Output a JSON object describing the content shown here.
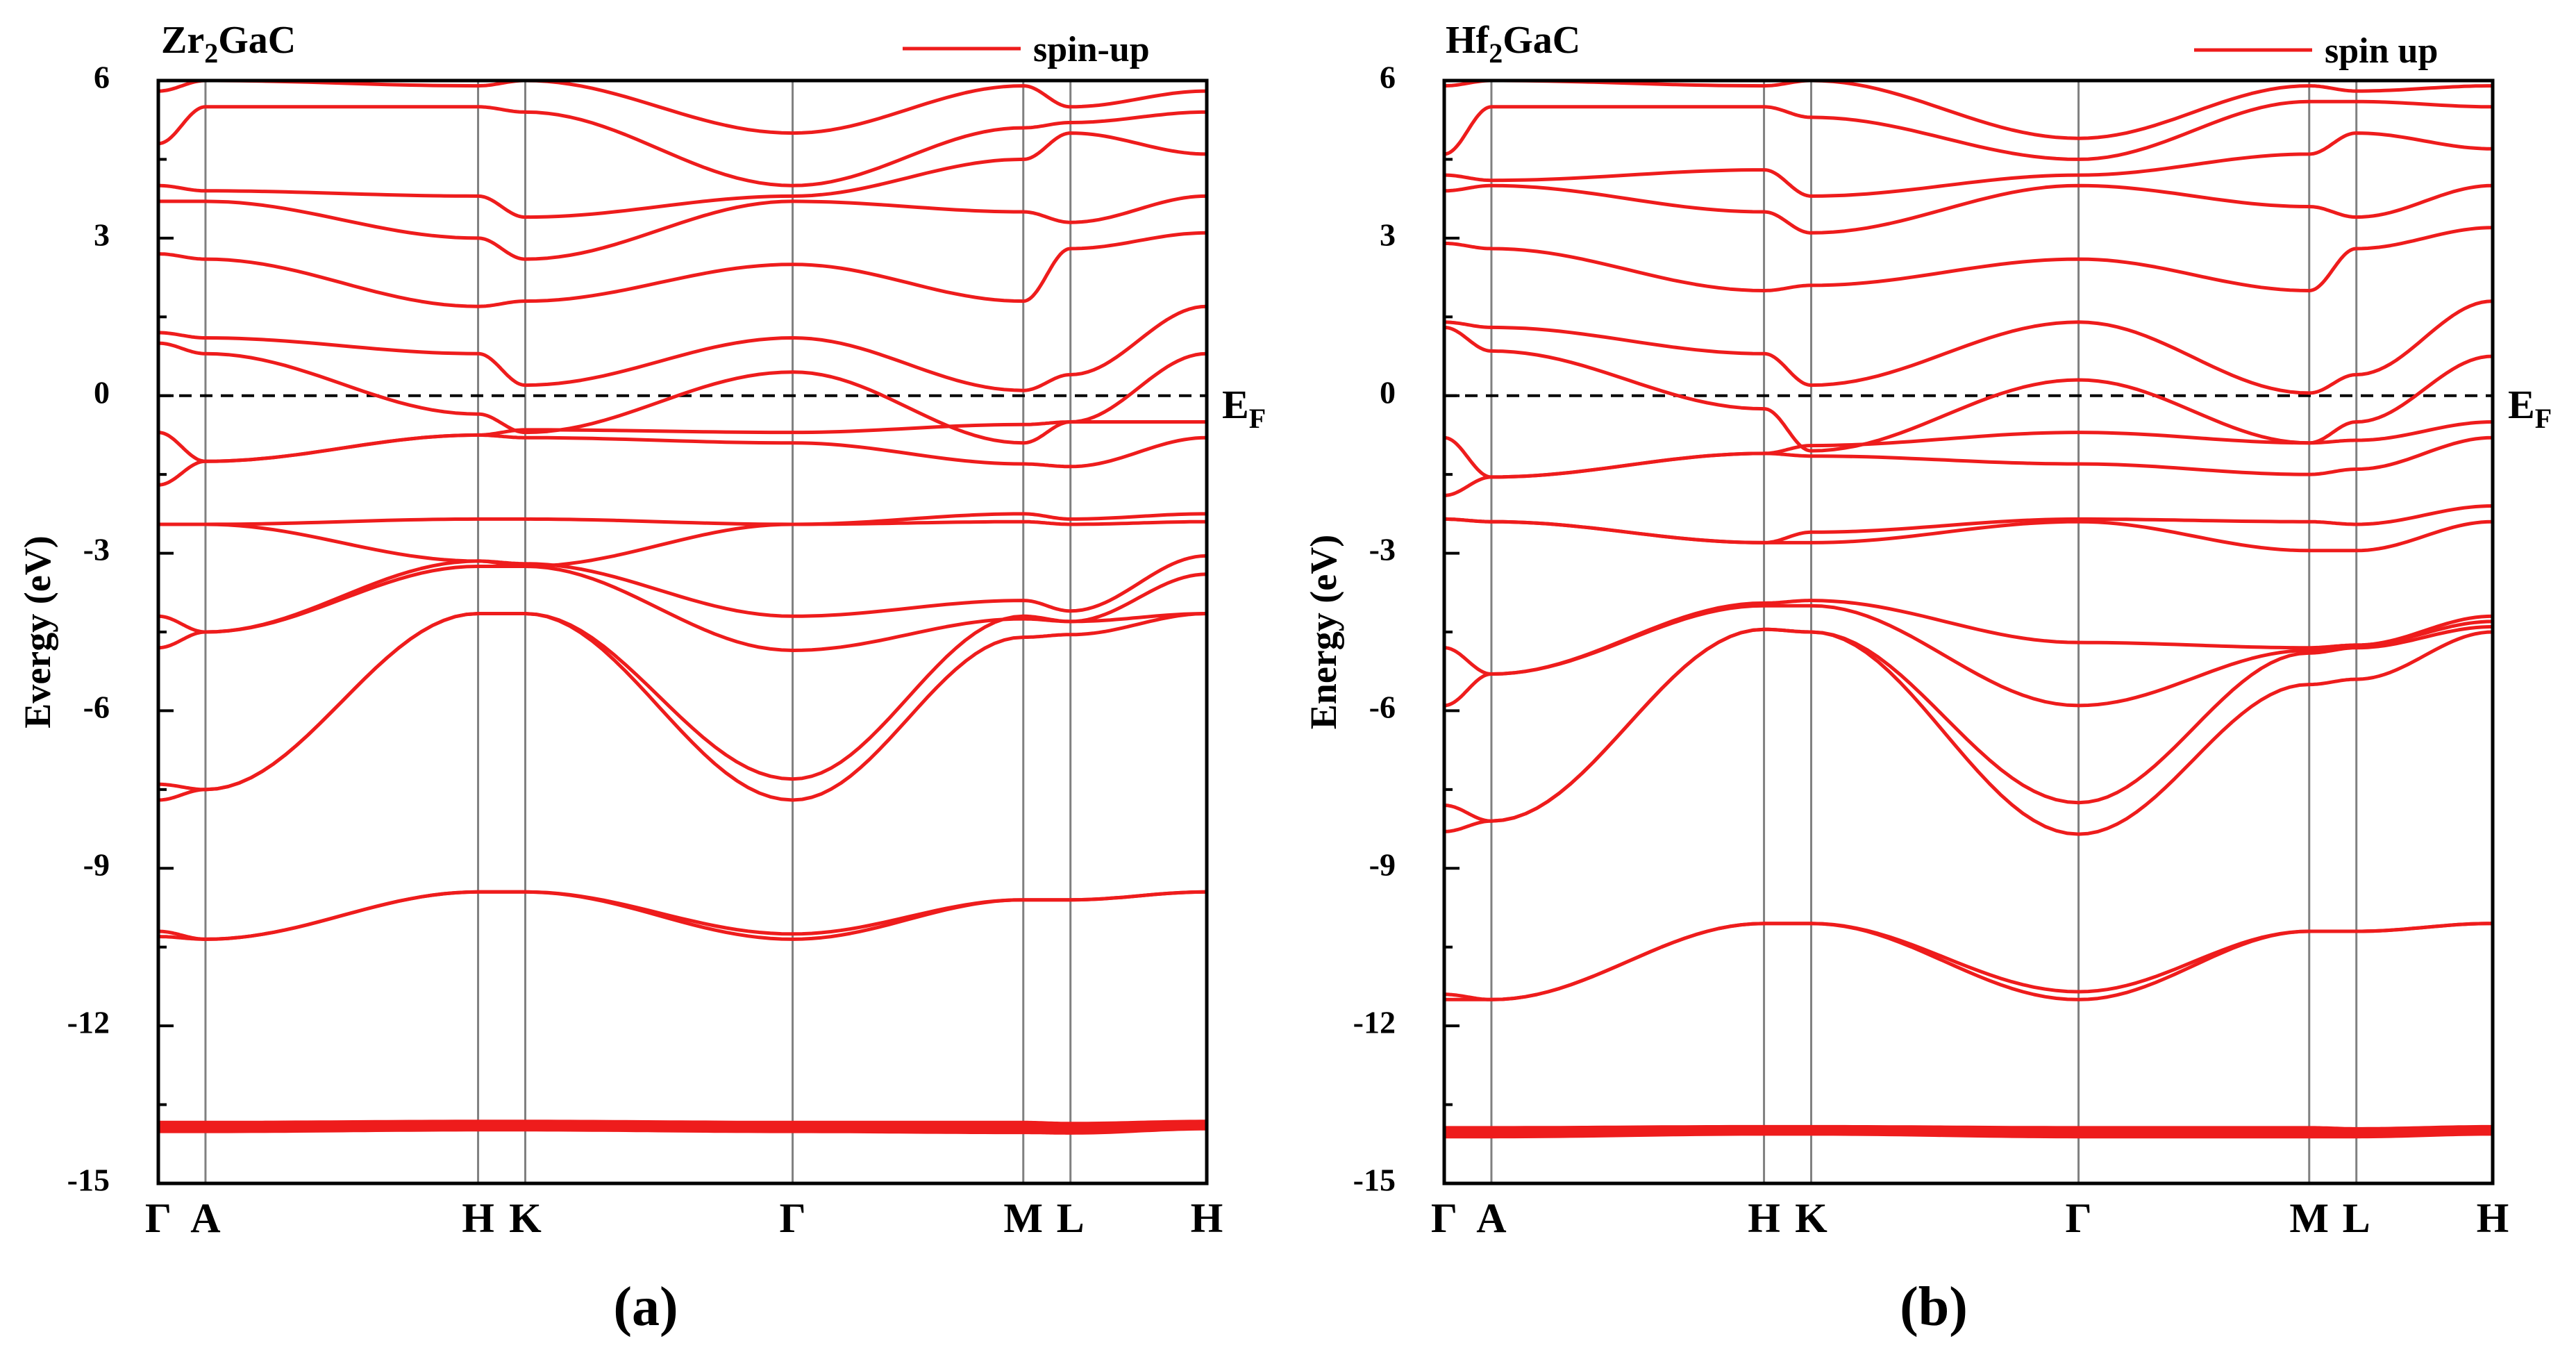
{
  "figure": {
    "band_color": "#ee1c1c",
    "kline_color": "#808080",
    "ef_line_color": "#000000"
  },
  "chart_data": [
    {
      "type": "line",
      "panel_label": "(a)",
      "material": {
        "base": "Zr",
        "sub": "2",
        "rest": "GaC"
      },
      "legend": "spin-up",
      "ylabel": "Evergy (eV)",
      "ylim": [
        -15,
        6
      ],
      "yticks": [
        6,
        3,
        0,
        -3,
        -6,
        -9,
        -12,
        -15
      ],
      "ytick_labels": [
        "6",
        "3",
        "0",
        "-3",
        "-6",
        "-9",
        "-12",
        "-15"
      ],
      "fermi_level": 0,
      "fermi_label": {
        "base": "E",
        "sub": "F"
      },
      "kpoints": [
        {
          "label": "Γ",
          "x": 0
        },
        {
          "label": "A",
          "x": 0.9
        },
        {
          "label": "H",
          "x": 6.1
        },
        {
          "label": "K",
          "x": 7.0
        },
        {
          "label": "Γ",
          "x": 12.1
        },
        {
          "label": "M",
          "x": 16.5
        },
        {
          "label": "L",
          "x": 17.4
        },
        {
          "label": "H",
          "x": 20.0
        }
      ],
      "series": [
        {
          "name": "core-1",
          "values": [
            -13.9,
            -13.9,
            -13.88,
            -13.88,
            -13.9,
            -13.9,
            -13.92,
            -13.88
          ]
        },
        {
          "name": "core-2",
          "values": [
            -13.95,
            -13.95,
            -13.92,
            -13.92,
            -13.95,
            -13.97,
            -13.98,
            -13.9
          ]
        },
        {
          "name": "band-1",
          "values": [
            -10.3,
            -10.35,
            -9.45,
            -9.45,
            -10.35,
            -9.6,
            -9.6,
            -9.45
          ]
        },
        {
          "name": "band-2",
          "values": [
            -10.2,
            -10.35,
            -9.45,
            -9.45,
            -10.25,
            -9.6,
            -9.6,
            -9.45
          ]
        },
        {
          "name": "band-3",
          "values": [
            -7.7,
            -7.5,
            -4.15,
            -4.15,
            -7.7,
            -4.6,
            -4.55,
            -4.15
          ]
        },
        {
          "name": "band-4",
          "values": [
            -7.4,
            -7.5,
            -4.15,
            -4.15,
            -7.3,
            -4.2,
            -4.3,
            -4.15
          ]
        },
        {
          "name": "band-5",
          "values": [
            -4.8,
            -4.5,
            -3.25,
            -3.25,
            -4.85,
            -4.25,
            -4.3,
            -3.4
          ]
        },
        {
          "name": "band-6",
          "values": [
            -4.2,
            -4.5,
            -3.15,
            -3.2,
            -4.2,
            -3.9,
            -4.1,
            -3.05
          ]
        },
        {
          "name": "band-7",
          "values": [
            -2.45,
            -2.45,
            -3.15,
            -3.25,
            -2.45,
            -2.4,
            -2.45,
            -2.4
          ]
        },
        {
          "name": "band-8",
          "values": [
            -2.45,
            -2.45,
            -2.35,
            -2.35,
            -2.45,
            -2.25,
            -2.35,
            -2.25
          ]
        },
        {
          "name": "band-9",
          "values": [
            -1.7,
            -1.25,
            -0.75,
            -0.8,
            -0.9,
            -1.3,
            -1.35,
            -0.8
          ]
        },
        {
          "name": "band-10",
          "values": [
            -0.7,
            -1.25,
            -0.75,
            -0.65,
            -0.7,
            -0.55,
            -0.5,
            -0.5
          ]
        },
        {
          "name": "band-11",
          "values": [
            1.0,
            0.8,
            -0.35,
            -0.7,
            0.45,
            -0.9,
            -0.5,
            0.8
          ]
        },
        {
          "name": "band-12",
          "values": [
            1.2,
            1.1,
            0.8,
            0.2,
            1.1,
            0.1,
            0.4,
            1.7
          ]
        },
        {
          "name": "band-13",
          "values": [
            2.7,
            2.6,
            1.7,
            1.8,
            2.5,
            1.8,
            2.8,
            3.1
          ]
        },
        {
          "name": "band-14",
          "values": [
            3.7,
            3.7,
            3.0,
            2.6,
            3.7,
            3.5,
            3.3,
            3.8
          ]
        },
        {
          "name": "band-15",
          "values": [
            4.0,
            3.9,
            3.8,
            3.4,
            3.8,
            4.5,
            5.0,
            4.6
          ]
        },
        {
          "name": "band-16",
          "values": [
            4.8,
            5.5,
            5.5,
            5.4,
            4.0,
            5.1,
            5.2,
            5.4
          ]
        },
        {
          "name": "band-17",
          "values": [
            5.8,
            6.0,
            5.9,
            6.0,
            5.0,
            5.9,
            5.5,
            5.8
          ]
        }
      ]
    },
    {
      "type": "line",
      "panel_label": "(b)",
      "material": {
        "base": "Hf",
        "sub": "2",
        "rest": "GaC"
      },
      "legend": "spin up",
      "ylabel": "Energy (eV)",
      "ylim": [
        -15,
        6
      ],
      "yticks": [
        6,
        3,
        0,
        -3,
        -6,
        -9,
        -12,
        -15
      ],
      "ytick_labels": [
        "6",
        "3",
        "0",
        "-3",
        "-6",
        "-9",
        "-12",
        "-15"
      ],
      "fermi_level": 0,
      "fermi_label": {
        "base": "E",
        "sub": "F"
      },
      "kpoints": [
        {
          "label": "Γ",
          "x": 0
        },
        {
          "label": "A",
          "x": 0.9
        },
        {
          "label": "H",
          "x": 6.1
        },
        {
          "label": "K",
          "x": 7.0
        },
        {
          "label": "Γ",
          "x": 12.1
        },
        {
          "label": "M",
          "x": 16.5
        },
        {
          "label": "L",
          "x": 17.4
        },
        {
          "label": "H",
          "x": 20.0
        }
      ],
      "series": [
        {
          "name": "core-1",
          "values": [
            -14.0,
            -14.0,
            -13.98,
            -13.98,
            -14.0,
            -14.0,
            -14.02,
            -13.98
          ]
        },
        {
          "name": "core-2",
          "values": [
            -14.05,
            -14.05,
            -14.0,
            -14.0,
            -14.05,
            -14.05,
            -14.05,
            -14.0
          ]
        },
        {
          "name": "band-1",
          "values": [
            -11.5,
            -11.5,
            -10.05,
            -10.05,
            -11.5,
            -10.2,
            -10.2,
            -10.05
          ]
        },
        {
          "name": "band-2",
          "values": [
            -11.4,
            -11.5,
            -10.05,
            -10.05,
            -11.35,
            -10.2,
            -10.2,
            -10.05
          ]
        },
        {
          "name": "band-3",
          "values": [
            -8.3,
            -8.1,
            -4.45,
            -4.5,
            -8.35,
            -5.5,
            -5.4,
            -4.5
          ]
        },
        {
          "name": "band-4",
          "values": [
            -7.8,
            -8.1,
            -4.45,
            -4.5,
            -7.75,
            -4.9,
            -4.8,
            -4.4
          ]
        },
        {
          "name": "band-5",
          "values": [
            -5.9,
            -5.3,
            -4.0,
            -4.0,
            -5.9,
            -4.85,
            -4.75,
            -4.3
          ]
        },
        {
          "name": "band-6",
          "values": [
            -4.8,
            -5.3,
            -3.95,
            -3.9,
            -4.7,
            -4.8,
            -4.75,
            -4.2
          ]
        },
        {
          "name": "band-7",
          "values": [
            -2.35,
            -2.4,
            -2.8,
            -2.8,
            -2.4,
            -2.95,
            -2.95,
            -2.4
          ]
        },
        {
          "name": "band-8",
          "values": [
            -2.35,
            -2.4,
            -2.8,
            -2.6,
            -2.35,
            -2.4,
            -2.45,
            -2.1
          ]
        },
        {
          "name": "band-9",
          "values": [
            -1.9,
            -1.55,
            -1.1,
            -1.15,
            -1.3,
            -1.5,
            -1.4,
            -0.8
          ]
        },
        {
          "name": "band-10",
          "values": [
            -0.8,
            -1.55,
            -1.1,
            -0.95,
            -0.7,
            -0.9,
            -0.85,
            -0.5
          ]
        },
        {
          "name": "band-11",
          "values": [
            1.3,
            0.85,
            -0.25,
            -1.05,
            0.3,
            -0.9,
            -0.5,
            0.75
          ]
        },
        {
          "name": "band-12",
          "values": [
            1.4,
            1.3,
            0.8,
            0.2,
            1.4,
            0.05,
            0.4,
            1.8
          ]
        },
        {
          "name": "band-13",
          "values": [
            2.9,
            2.8,
            2.0,
            2.1,
            2.6,
            2.0,
            2.8,
            3.2
          ]
        },
        {
          "name": "band-14",
          "values": [
            3.9,
            4.0,
            3.5,
            3.1,
            4.0,
            3.6,
            3.4,
            4.0
          ]
        },
        {
          "name": "band-15",
          "values": [
            4.2,
            4.1,
            4.3,
            3.8,
            4.2,
            4.6,
            5.0,
            4.7
          ]
        },
        {
          "name": "band-16",
          "values": [
            4.6,
            5.5,
            5.5,
            5.3,
            4.5,
            5.6,
            5.6,
            5.5
          ]
        },
        {
          "name": "band-17",
          "values": [
            5.9,
            6.0,
            5.9,
            6.0,
            4.9,
            5.9,
            5.8,
            5.9
          ]
        }
      ]
    }
  ]
}
